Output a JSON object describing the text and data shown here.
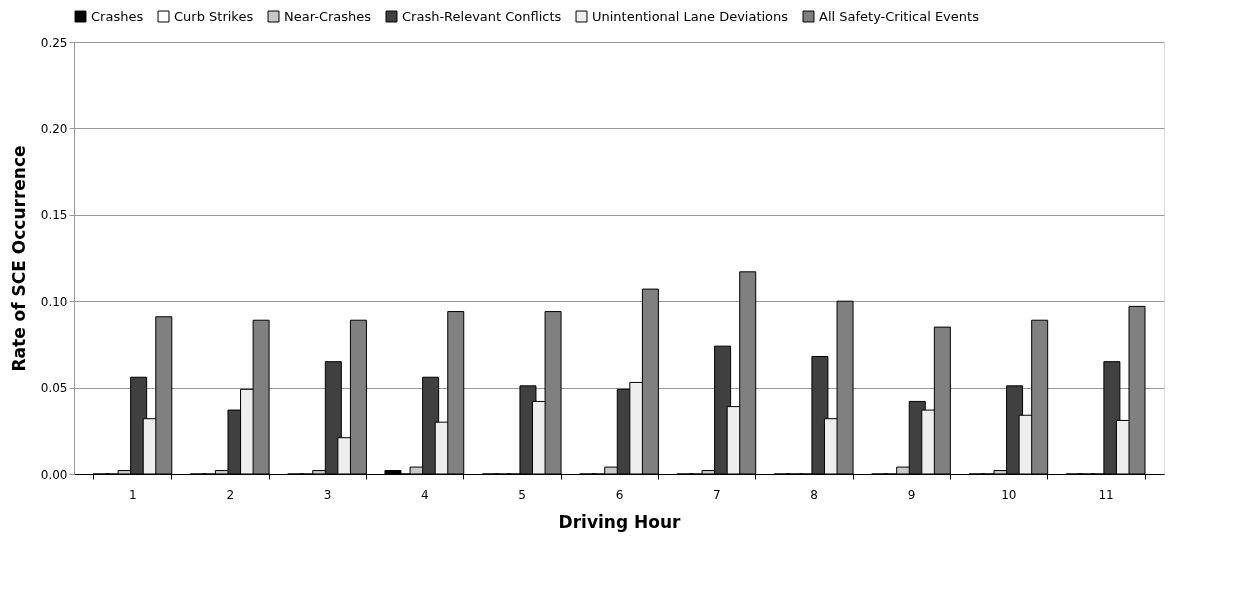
{
  "chart_data": {
    "type": "bar",
    "xlabel": "Driving Hour",
    "ylabel": "Rate of SCE Occurrence",
    "categories": [
      "1",
      "2",
      "3",
      "4",
      "5",
      "6",
      "7",
      "8",
      "9",
      "10",
      "11"
    ],
    "series": [
      {
        "name": "Crashes",
        "color": "#000000",
        "values": [
          0,
          0,
          0,
          0.002,
          0,
          0,
          0,
          0,
          0,
          0,
          0
        ]
      },
      {
        "name": "Curb Strikes",
        "color": "#ffffff",
        "values": [
          0,
          0,
          0,
          0,
          0,
          0,
          0,
          0,
          0,
          0,
          0
        ]
      },
      {
        "name": "Near-Crashes",
        "color": "#c8c8c8",
        "values": [
          0.002,
          0.002,
          0.002,
          0.004,
          0,
          0.004,
          0.002,
          0,
          0.004,
          0.002,
          0
        ]
      },
      {
        "name": "Crash-Relevant Conflicts",
        "color": "#404040",
        "values": [
          0.056,
          0.037,
          0.065,
          0.056,
          0.051,
          0.049,
          0.074,
          0.068,
          0.042,
          0.051,
          0.065
        ]
      },
      {
        "name": "Unintentional Lane Deviations",
        "color": "#eeeeee",
        "values": [
          0.032,
          0.049,
          0.021,
          0.03,
          0.042,
          0.053,
          0.039,
          0.032,
          0.037,
          0.034,
          0.031
        ]
      },
      {
        "name": "All Safety-Critical Events",
        "color": "#808080",
        "values": [
          0.091,
          0.089,
          0.089,
          0.094,
          0.094,
          0.107,
          0.117,
          0.1,
          0.085,
          0.089,
          0.097
        ]
      }
    ],
    "ylim": [
      0,
      0.25
    ],
    "yticks": [
      {
        "value": 0,
        "label": "0.00"
      },
      {
        "value": 0.05,
        "label": "0.05"
      },
      {
        "value": 0.1,
        "label": "0.10"
      },
      {
        "value": 0.15,
        "label": "0.15"
      },
      {
        "value": 0.2,
        "label": "0.20"
      },
      {
        "value": 0.25,
        "label": "0.25"
      }
    ],
    "grid": "y",
    "legend": "top"
  }
}
